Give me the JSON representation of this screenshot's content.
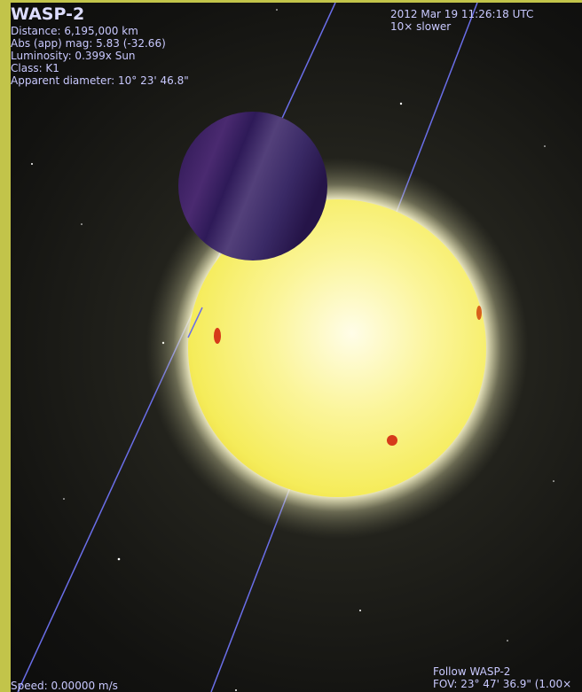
{
  "info": {
    "object_name": "WASP-2",
    "details": [
      "Distance: 6,195,000 km",
      "Abs (app) mag: 5.83 (-32.66)",
      "Luminosity: 0.399x Sun",
      "Class: K1",
      "Apparent diameter: 10° 23' 46.8\""
    ]
  },
  "time": {
    "datetime": "2012 Mar 19 11:26:18 UTC",
    "rate": "10× slower"
  },
  "status": {
    "speed": "Speed: 0.00000 m/s",
    "follow": "Follow WASP-2",
    "fov": "FOV: 23° 47' 36.9\" (1.00×"
  }
}
